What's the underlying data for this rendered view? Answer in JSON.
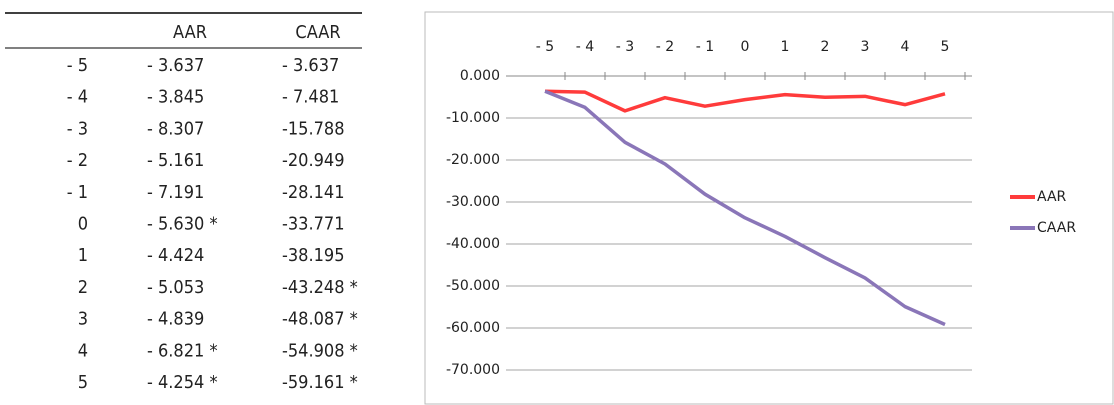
{
  "table": {
    "header": [
      "AAR",
      "CAAR"
    ],
    "rows": [
      [
        "- 5",
        "- 3.637",
        "- 3.637"
      ],
      [
        "- 4",
        "- 3.845",
        "- 7.481"
      ],
      [
        "- 3",
        "- 8.307",
        "-15.788"
      ],
      [
        "- 2",
        "- 5.161",
        "-20.949"
      ],
      [
        "- 1",
        "- 7.191",
        "-28.141"
      ],
      [
        "0",
        "- 5.630 *",
        "-33.771"
      ],
      [
        "1",
        "- 4.424",
        "-38.195"
      ],
      [
        "2",
        "- 5.053",
        "-43.248 *"
      ],
      [
        "3",
        "- 4.839",
        "-48.087 *"
      ],
      [
        "4",
        "- 6.821 *",
        "-54.908 *"
      ],
      [
        "5",
        "- 4.254 *",
        "-59.161 *"
      ]
    ]
  },
  "chart_data": {
    "type": "line",
    "categories": [
      "- 5",
      "- 4",
      "- 3",
      "- 2",
      "- 1",
      "0",
      "1",
      "2",
      "3",
      "4",
      "5"
    ],
    "series": [
      {
        "name": "AAR",
        "color": "#ff3b3b",
        "values": [
          -3.637,
          -3.845,
          -8.307,
          -5.161,
          -7.191,
          -5.63,
          -4.424,
          -5.053,
          -4.839,
          -6.821,
          -4.254
        ]
      },
      {
        "name": "CAAR",
        "color": "#8a76b8",
        "values": [
          -3.637,
          -7.481,
          -15.788,
          -20.949,
          -28.141,
          -33.771,
          -38.195,
          -43.248,
          -48.087,
          -54.908,
          -59.161
        ]
      }
    ],
    "ylim": [
      -70,
      0
    ],
    "yticks": [
      {
        "value": 0,
        "label": "0.000"
      },
      {
        "value": -10,
        "label": "-10.000"
      },
      {
        "value": -20,
        "label": "-20.000"
      },
      {
        "value": -30,
        "label": "-30.000"
      },
      {
        "value": -40,
        "label": "-40.000"
      },
      {
        "value": -50,
        "label": "-50.000"
      },
      {
        "value": -60,
        "label": "-60.000"
      },
      {
        "value": -70,
        "label": "-70.000"
      }
    ],
    "grid": true,
    "legend": "right"
  }
}
